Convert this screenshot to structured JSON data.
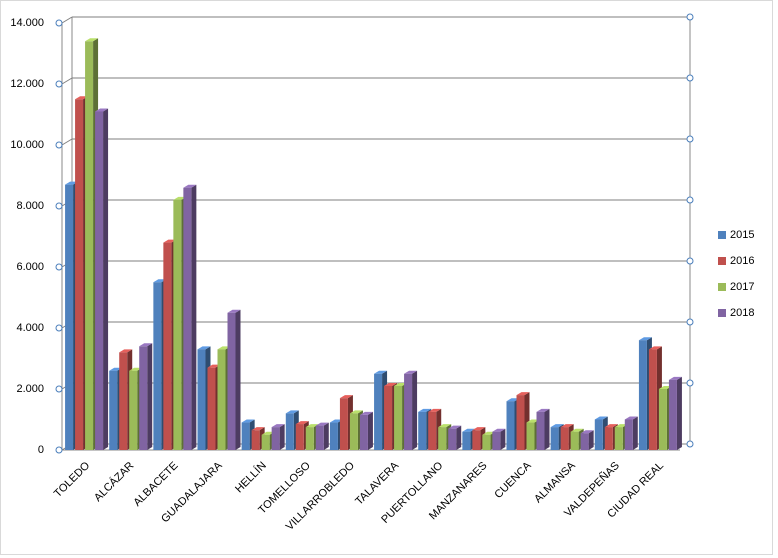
{
  "chart_data": {
    "type": "bar3d",
    "categories": [
      "TOLEDO",
      "ALCÁZAR",
      "ALBACETE",
      "GUADALAJARA",
      "HELLÍN",
      "TOMELLOSO",
      "VILLARROBLEDO",
      "TALAVERA",
      "PUERTOLLANO",
      "MANZANARES",
      "CUENCA",
      "ALMANSA",
      "VALDEPEÑAS",
      "CIUDAD REAL"
    ],
    "series": [
      {
        "name": "2015",
        "color": "#4f81bd",
        "values": [
          8700,
          2600,
          5500,
          3300,
          900,
          1200,
          900,
          2500,
          1250,
          600,
          1600,
          750,
          1000,
          3600
        ]
      },
      {
        "name": "2016",
        "color": "#c0504d",
        "values": [
          11500,
          3200,
          6800,
          2700,
          650,
          850,
          1700,
          2100,
          1250,
          650,
          1800,
          750,
          750,
          3300
        ]
      },
      {
        "name": "2017",
        "color": "#9bbb59",
        "values": [
          13400,
          2600,
          8200,
          3300,
          500,
          750,
          1200,
          2100,
          750,
          500,
          900,
          600,
          750,
          2000
        ]
      },
      {
        "name": "2018",
        "color": "#8064a2",
        "values": [
          11100,
          3400,
          8600,
          4500,
          750,
          800,
          1150,
          2500,
          700,
          600,
          1250,
          550,
          1000,
          2300
        ]
      }
    ],
    "ylim": [
      0,
      14000
    ],
    "yticks": [
      0,
      {
        "value": 2000,
        "label": "2.000"
      },
      {
        "value": 4000,
        "label": "4.000"
      },
      {
        "value": 6000,
        "label": "6.000"
      },
      {
        "value": 8000,
        "label": "8.000"
      },
      {
        "value": 10000,
        "label": "10.000"
      },
      {
        "value": 12000,
        "label": "12.000"
      },
      {
        "value": 14000,
        "label": "14.000"
      }
    ],
    "grid": true,
    "legend": "right"
  }
}
